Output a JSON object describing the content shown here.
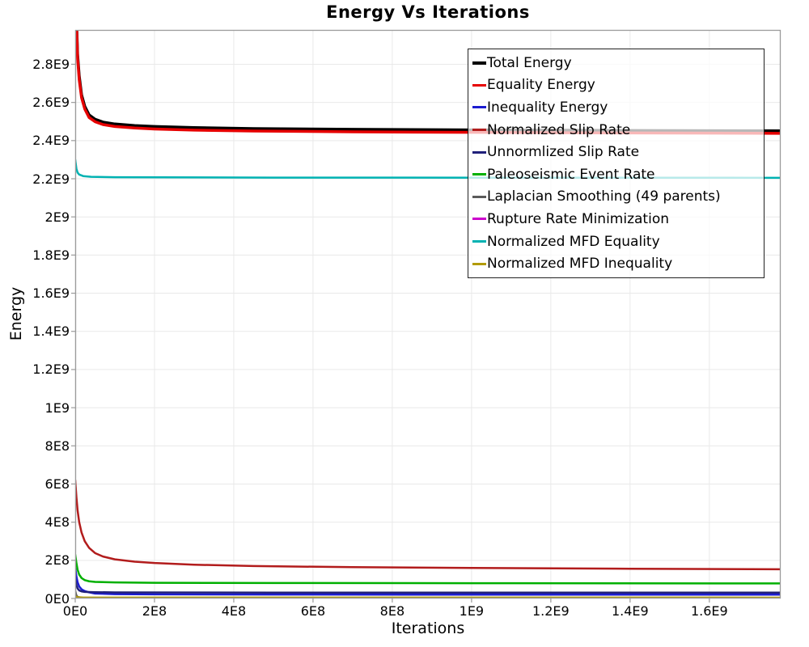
{
  "chart_data": {
    "type": "line",
    "title": "Energy Vs Iterations",
    "xlabel": "Iterations",
    "ylabel": "Energy",
    "xlim": [
      0,
      1780000000.0
    ],
    "ylim": [
      0,
      2980000000.0
    ],
    "grid": true,
    "legend_position": "top-right-inside",
    "background_color": "#ffffff",
    "grid_color": "#e9e9e9",
    "border_color": "#9b9b9b",
    "x_ticks": [
      {
        "value": 0,
        "label": "0E0"
      },
      {
        "value": 200000000.0,
        "label": "2E8"
      },
      {
        "value": 400000000.0,
        "label": "4E8"
      },
      {
        "value": 600000000.0,
        "label": "6E8"
      },
      {
        "value": 800000000.0,
        "label": "8E8"
      },
      {
        "value": 1000000000.0,
        "label": "1E9"
      },
      {
        "value": 1200000000.0,
        "label": "1.2E9"
      },
      {
        "value": 1400000000.0,
        "label": "1.4E9"
      },
      {
        "value": 1600000000.0,
        "label": "1.6E9"
      }
    ],
    "y_ticks": [
      {
        "value": 0,
        "label": "0E0"
      },
      {
        "value": 200000000.0,
        "label": "2E8"
      },
      {
        "value": 400000000.0,
        "label": "4E8"
      },
      {
        "value": 600000000.0,
        "label": "6E8"
      },
      {
        "value": 800000000.0,
        "label": "8E8"
      },
      {
        "value": 1000000000.0,
        "label": "1E9"
      },
      {
        "value": 1200000000.0,
        "label": "1.2E9"
      },
      {
        "value": 1400000000.0,
        "label": "1.4E9"
      },
      {
        "value": 1600000000.0,
        "label": "1.6E9"
      },
      {
        "value": 1800000000.0,
        "label": "1.8E9"
      },
      {
        "value": 2000000000.0,
        "label": "2E9"
      },
      {
        "value": 2200000000.0,
        "label": "2.2E9"
      },
      {
        "value": 2400000000.0,
        "label": "2.4E9"
      },
      {
        "value": 2600000000.0,
        "label": "2.6E9"
      },
      {
        "value": 2800000000.0,
        "label": "2.8E9"
      }
    ],
    "series": [
      {
        "name": "Total Energy",
        "color": "#000000",
        "width": 3.5,
        "swatch": 4.5,
        "points": [
          [
            0,
            3600000000.0
          ],
          [
            3000000.0,
            3050000000.0
          ],
          [
            6000000.0,
            2850000000.0
          ],
          [
            10000000.0,
            2740000000.0
          ],
          [
            16000000.0,
            2640000000.0
          ],
          [
            24000000.0,
            2580000000.0
          ],
          [
            35000000.0,
            2535000000.0
          ],
          [
            50000000.0,
            2512000000.0
          ],
          [
            70000000.0,
            2497000000.0
          ],
          [
            100000000.0,
            2487000000.0
          ],
          [
            150000000.0,
            2479000000.0
          ],
          [
            200000000.0,
            2474000000.0
          ],
          [
            300000000.0,
            2468000000.0
          ],
          [
            450000000.0,
            2463000000.0
          ],
          [
            700000000.0,
            2459000000.0
          ],
          [
            1000000000.0,
            2456000000.0
          ],
          [
            1400000000.0,
            2453000000.0
          ],
          [
            1780000000.0,
            2451000000.0
          ]
        ]
      },
      {
        "name": "Equality Energy",
        "color": "#e60000",
        "width": 3.5,
        "swatch": 3.5,
        "points": [
          [
            0,
            3580000000.0
          ],
          [
            3000000.0,
            3030000000.0
          ],
          [
            6000000.0,
            2830000000.0
          ],
          [
            10000000.0,
            2720000000.0
          ],
          [
            16000000.0,
            2625000000.0
          ],
          [
            24000000.0,
            2566000000.0
          ],
          [
            35000000.0,
            2521000000.0
          ],
          [
            50000000.0,
            2499000000.0
          ],
          [
            70000000.0,
            2484000000.0
          ],
          [
            100000000.0,
            2474000000.0
          ],
          [
            150000000.0,
            2466000000.0
          ],
          [
            200000000.0,
            2461000000.0
          ],
          [
            300000000.0,
            2455000000.0
          ],
          [
            450000000.0,
            2450000000.0
          ],
          [
            700000000.0,
            2446000000.0
          ],
          [
            1000000000.0,
            2443000000.0
          ],
          [
            1400000000.0,
            2440000000.0
          ],
          [
            1780000000.0,
            2438000000.0
          ]
        ]
      },
      {
        "name": "Inequality Energy",
        "color": "#1b1bd0",
        "width": 2.5,
        "swatch": 3,
        "points": [
          [
            0,
            160000000.0
          ],
          [
            3000000.0,
            115000000.0
          ],
          [
            6000000.0,
            85000000.0
          ],
          [
            10000000.0,
            63000000.0
          ],
          [
            16000000.0,
            48000000.0
          ],
          [
            24000000.0,
            39000000.0
          ],
          [
            35000000.0,
            32000000.0
          ],
          [
            50000000.0,
            26000000.0
          ],
          [
            100000000.0,
            23000000.0
          ],
          [
            200000000.0,
            21500000.0
          ],
          [
            500000000.0,
            20500000.0
          ],
          [
            1000000000.0,
            20000000.0
          ],
          [
            1780000000.0,
            20000000.0
          ]
        ]
      },
      {
        "name": "Normalized Slip Rate",
        "color": "#b21c1c",
        "width": 2.5,
        "swatch": 3,
        "points": [
          [
            0,
            620000000.0
          ],
          [
            3000000.0,
            530000000.0
          ],
          [
            6000000.0,
            460000000.0
          ],
          [
            10000000.0,
            400000000.0
          ],
          [
            16000000.0,
            345000000.0
          ],
          [
            24000000.0,
            300000000.0
          ],
          [
            35000000.0,
            265000000.0
          ],
          [
            50000000.0,
            238000000.0
          ],
          [
            70000000.0,
            220000000.0
          ],
          [
            100000000.0,
            205000000.0
          ],
          [
            150000000.0,
            193000000.0
          ],
          [
            200000000.0,
            186000000.0
          ],
          [
            300000000.0,
            177000000.0
          ],
          [
            450000000.0,
            170000000.0
          ],
          [
            700000000.0,
            164000000.0
          ],
          [
            1000000000.0,
            160000000.0
          ],
          [
            1400000000.0,
            156000000.0
          ],
          [
            1780000000.0,
            153000000.0
          ]
        ]
      },
      {
        "name": "Unnormlized Slip Rate",
        "color": "#20207a",
        "width": 2.5,
        "swatch": 3,
        "points": [
          [
            0,
            100000000.0
          ],
          [
            3000000.0,
            70000000.0
          ],
          [
            6000000.0,
            52000000.0
          ],
          [
            10000000.0,
            42000000.0
          ],
          [
            16000000.0,
            37000000.0
          ],
          [
            24000000.0,
            34500000.0
          ],
          [
            50000000.0,
            33000000.0
          ],
          [
            100000000.0,
            32000000.0
          ],
          [
            500000000.0,
            31000000.0
          ],
          [
            1780000000.0,
            30500000.0
          ]
        ]
      },
      {
        "name": "Paleoseismic Event Rate",
        "color": "#00b000",
        "width": 2.5,
        "swatch": 3,
        "points": [
          [
            0,
            230000000.0
          ],
          [
            3000000.0,
            185000000.0
          ],
          [
            6000000.0,
            150000000.0
          ],
          [
            10000000.0,
            125000000.0
          ],
          [
            16000000.0,
            107000000.0
          ],
          [
            24000000.0,
            96000000.0
          ],
          [
            35000000.0,
            90000000.0
          ],
          [
            50000000.0,
            87000000.0
          ],
          [
            100000000.0,
            84000000.0
          ],
          [
            200000000.0,
            82000000.0
          ],
          [
            500000000.0,
            81000000.0
          ],
          [
            1000000000.0,
            80000000.0
          ],
          [
            1780000000.0,
            79000000.0
          ]
        ]
      },
      {
        "name": "Laplacian Smoothing (49 parents)",
        "color": "#5a5a5a",
        "width": 2,
        "swatch": 3,
        "points": [
          [
            0,
            45000000.0
          ],
          [
            3000000.0,
            18000000.0
          ],
          [
            6000000.0,
            9000000.0
          ],
          [
            15000000.0,
            5000000.0
          ],
          [
            50000000.0,
            3000000.0
          ],
          [
            1780000000.0,
            2000000.0
          ]
        ]
      },
      {
        "name": "Rupture Rate Minimization",
        "color": "#cc00cc",
        "width": 2,
        "swatch": 3,
        "points": [
          [
            0,
            15000000.0
          ],
          [
            4000000.0,
            6000000.0
          ],
          [
            15000000.0,
            2500000.0
          ],
          [
            1780000000.0,
            1500000.0
          ]
        ]
      },
      {
        "name": "Normalized MFD Equality",
        "color": "#00b2b2",
        "width": 2.5,
        "swatch": 3,
        "points": [
          [
            0,
            2300000000.0
          ],
          [
            3000000.0,
            2252000000.0
          ],
          [
            6000000.0,
            2232000000.0
          ],
          [
            10000000.0,
            2222000000.0
          ],
          [
            20000000.0,
            2214000000.0
          ],
          [
            40000000.0,
            2210000000.0
          ],
          [
            100000000.0,
            2208000000.0
          ],
          [
            500000000.0,
            2206000000.0
          ],
          [
            1780000000.0,
            2205000000.0
          ]
        ]
      },
      {
        "name": "Normalized MFD Inequality",
        "color": "#b29b00",
        "width": 2.5,
        "swatch": 3,
        "points": [
          [
            0,
            12000000.0
          ],
          [
            5000000.0,
            7000000.0
          ],
          [
            20000000.0,
            5000000.0
          ],
          [
            1780000000.0,
            4500000.0
          ]
        ]
      }
    ]
  }
}
